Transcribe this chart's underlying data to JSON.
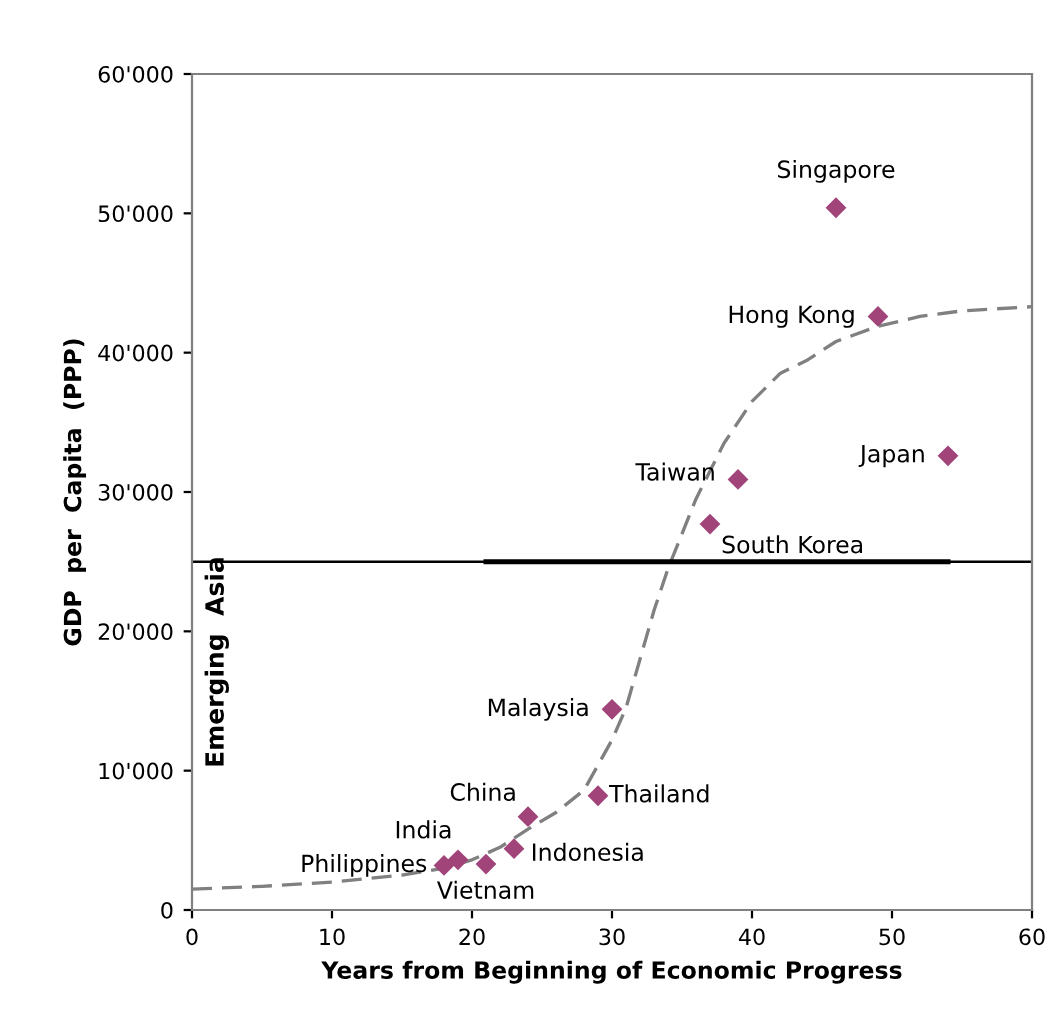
{
  "chart_data": {
    "type": "scatter",
    "xlabel": "Years from Beginning of Economic Progress",
    "ylabel": "GDP  per  Capita  (PPP)",
    "xlim": [
      0,
      60
    ],
    "xticks": [
      0,
      10,
      20,
      30,
      40,
      50,
      60
    ],
    "ylim": [
      0,
      60000
    ],
    "yticks": [
      {
        "value": 0,
        "label": "0"
      },
      {
        "value": 10000,
        "label": "10'000"
      },
      {
        "value": 20000,
        "label": "20'000"
      },
      {
        "value": 30000,
        "label": "30'000"
      },
      {
        "value": 40000,
        "label": "40'000"
      },
      {
        "value": 50000,
        "label": "50'000"
      },
      {
        "value": 60000,
        "label": "60'000"
      }
    ],
    "grid": false,
    "legend": false,
    "series": [
      {
        "type": "line",
        "color": "#808080",
        "line_style": "dashed",
        "marker": "none",
        "x": [
          0,
          5,
          10,
          15,
          18,
          20,
          22,
          24,
          26,
          28,
          30,
          31,
          32,
          33,
          34,
          35,
          36,
          37,
          38,
          40,
          42,
          44,
          46,
          49,
          52,
          55,
          60
        ],
        "values": [
          1500,
          1700,
          2000,
          2500,
          3000,
          3600,
          4500,
          5800,
          7000,
          8600,
          12200,
          14500,
          18000,
          21500,
          24500,
          27000,
          29500,
          31500,
          33500,
          36500,
          38500,
          39500,
          40800,
          41900,
          42600,
          43000,
          43300
        ]
      },
      {
        "type": "line",
        "color": "#000000",
        "line_style": "solid",
        "marker": "none",
        "x": [
          21,
          54
        ],
        "values": [
          25000,
          25000
        ]
      },
      {
        "color": "#a0447a",
        "marker": "diamond",
        "x": [
          46,
          49,
          54,
          39,
          37,
          30,
          29,
          24,
          23,
          21,
          19,
          18
        ],
        "values": [
          50400,
          42600,
          32600,
          30900,
          27700,
          14400,
          8200,
          6700,
          4400,
          3300,
          3600,
          3200
        ]
      }
    ],
    "ref_lines": [
      {
        "axis": "y",
        "value": 25000,
        "color": "#000000"
      }
    ],
    "annotations": [
      {
        "text": "Singapore",
        "x": 46,
        "y": 50400
      },
      {
        "text": "Hong Kong",
        "x": 49,
        "y": 42600
      },
      {
        "text": "Japan",
        "x": 54,
        "y": 32600
      },
      {
        "text": "Taiwan",
        "x": 39,
        "y": 30900
      },
      {
        "text": "South Korea",
        "x": 37,
        "y": 27700
      },
      {
        "text": "Malaysia",
        "x": 30,
        "y": 14400
      },
      {
        "text": "Thailand",
        "x": 29,
        "y": 8200
      },
      {
        "text": "China",
        "x": 24,
        "y": 6700
      },
      {
        "text": "Indonesia",
        "x": 23,
        "y": 4400
      },
      {
        "text": "Vietnam",
        "x": 21,
        "y": 3300
      },
      {
        "text": "India",
        "x": 19,
        "y": 3600
      },
      {
        "text": "Philippines",
        "x": 18,
        "y": 3200
      },
      "Emerging  Asia"
    ]
  }
}
